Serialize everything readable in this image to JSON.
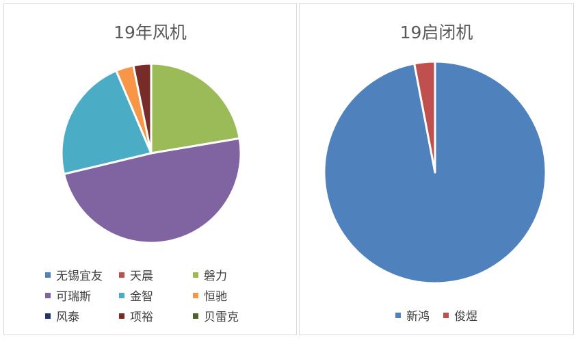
{
  "chart_data": [
    {
      "type": "pie",
      "title": "19年风机",
      "categories": [
        "无锡宜友",
        "天晨",
        "磐力",
        "可瑞斯",
        "金智",
        "恒驰",
        "风泰",
        "项裕",
        "贝雷克"
      ],
      "values": [
        0,
        0,
        21,
        46,
        21,
        3,
        0,
        3,
        0
      ],
      "colors": [
        "#4F81BD",
        "#C0504D",
        "#9BBB59",
        "#8064A2",
        "#4BACC6",
        "#F79646",
        "#1F3864",
        "#772C2A",
        "#4F6228"
      ],
      "legend": "bottom"
    },
    {
      "type": "pie",
      "title": "19启闭机",
      "categories": [
        "新鸿",
        "俊煜"
      ],
      "values": [
        97,
        3
      ],
      "colors": [
        "#4F81BD",
        "#C0504D"
      ],
      "legend": "bottom"
    }
  ]
}
